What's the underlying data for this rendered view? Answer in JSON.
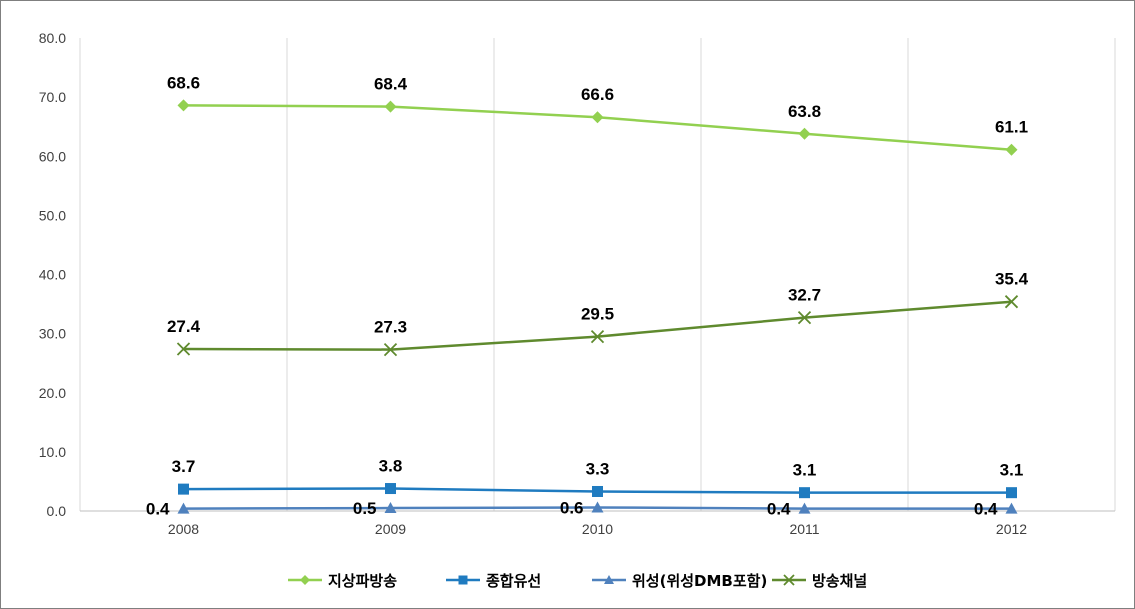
{
  "chart_data": {
    "type": "line",
    "title": "",
    "xlabel": "",
    "ylabel": "",
    "categories": [
      "2008",
      "2009",
      "2010",
      "2011",
      "2012"
    ],
    "ylim": [
      0,
      80
    ],
    "yticks": [
      "0.0",
      "10.0",
      "20.0",
      "30.0",
      "40.0",
      "50.0",
      "60.0",
      "70.0",
      "80.0"
    ],
    "grid": "vertical",
    "legend_position": "bottom",
    "series": [
      {
        "name": "지상파방송",
        "color": "#92d050",
        "marker": "diamond",
        "values": [
          68.6,
          68.4,
          66.6,
          63.8,
          61.1
        ],
        "labels": [
          "68.6",
          "68.4",
          "66.6",
          "63.8",
          "61.1"
        ]
      },
      {
        "name": "종합유선",
        "color": "#1f7bc0",
        "marker": "square",
        "values": [
          3.7,
          3.8,
          3.3,
          3.1,
          3.1
        ],
        "labels": [
          "3.7",
          "3.8",
          "3.3",
          "3.1",
          "3.1"
        ]
      },
      {
        "name": "위성(위성DMB포함)",
        "color": "#4f81bd",
        "marker": "triangle",
        "values": [
          0.4,
          0.5,
          0.6,
          0.4,
          0.4
        ],
        "labels": [
          "0.4",
          "0.5",
          "0.6",
          "0.4",
          "0.4"
        ]
      },
      {
        "name": "방송채널",
        "color": "#5f8a2e",
        "marker": "x",
        "values": [
          27.4,
          27.3,
          29.5,
          32.7,
          35.4
        ],
        "labels": [
          "27.4",
          "27.3",
          "29.5",
          "32.7",
          "35.4"
        ]
      }
    ]
  }
}
